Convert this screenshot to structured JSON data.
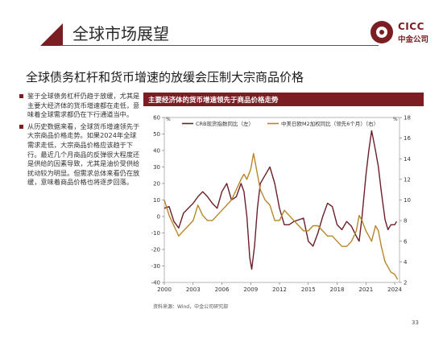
{
  "header": {
    "title": "全球市场展望"
  },
  "logo": {
    "en": "CICC",
    "cn": "中金公司"
  },
  "subtitle": "全球债务杠杆和货币增速的放缓会压制大宗商品价格",
  "bullets": [
    "鉴于全球债务杠杆仍趋于放缓，尤其是主要大经济体的货币增速都在走低，意味着全球需求都仍在下行通道当中。",
    "从历史数据来看，全球货币增速领先于大宗商品价格走势。如果2024年全球需求走低，大宗商品价格应该趋于下行。最近几个月商品的反弹很大程度还是供给的因素导致，尤其是油价受供给扰动较为明显。但需求总体来看仍在放缓，意味着商品价格也将逐步回落。"
  ],
  "chart_title": "主要经济体的货币增速领先于商品价格走势",
  "source": "资料来源：Wind，中金公司研究部",
  "page_number": "33",
  "colors": {
    "brand": "#7a1e23",
    "crb": "#6b1f28",
    "m2": "#b8862a"
  },
  "chart_data": {
    "type": "line",
    "xlim": [
      2000,
      2024.5
    ],
    "x_ticks": [
      "2000",
      "2003",
      "2006",
      "2009",
      "2012",
      "2015",
      "2018",
      "2021",
      "2024"
    ],
    "y_left": {
      "lim": [
        -40,
        60
      ],
      "ticks": [
        "60",
        "50",
        "40",
        "30",
        "20",
        "10",
        "0",
        "-10",
        "-20",
        "-30",
        "-40"
      ],
      "unit_label": "%"
    },
    "y_right": {
      "lim": [
        2,
        18
      ],
      "ticks": [
        "18",
        "16",
        "14",
        "12",
        "10",
        "8",
        "6",
        "4",
        "2"
      ],
      "unit_label": "%"
    },
    "series": [
      {
        "name": "CRB现货指数同比（左）",
        "axis": "left",
        "color": "#6b1f28",
        "x": [
          2000,
          2000.5,
          2001,
          2001.5,
          2002,
          2002.5,
          2003,
          2003.5,
          2004,
          2004.5,
          2005,
          2005.5,
          2006,
          2006.5,
          2007,
          2007.5,
          2008,
          2008.3,
          2008.6,
          2008.9,
          2009.1,
          2009.4,
          2009.7,
          2010,
          2010.5,
          2011,
          2011.5,
          2012,
          2012.5,
          2013,
          2013.5,
          2014,
          2014.5,
          2015,
          2015.5,
          2016,
          2016.5,
          2017,
          2017.5,
          2018,
          2018.5,
          2019,
          2019.5,
          2020,
          2020.3,
          2020.6,
          2021,
          2021.3,
          2021.6,
          2022,
          2022.3,
          2022.6,
          2023,
          2023.3,
          2023.6,
          2024,
          2024.2
        ],
        "y": [
          5,
          6,
          -3,
          -7,
          2,
          5,
          8,
          12,
          15,
          12,
          8,
          5,
          15,
          20,
          10,
          12,
          20,
          15,
          0,
          -25,
          -32,
          -18,
          5,
          20,
          25,
          30,
          20,
          5,
          -5,
          -5,
          -3,
          -2,
          -1,
          -15,
          -18,
          -10,
          0,
          8,
          6,
          -5,
          -8,
          -3,
          -6,
          -12,
          -15,
          0,
          25,
          40,
          52,
          40,
          30,
          15,
          -2,
          -8,
          -5,
          -5,
          -3
        ]
      },
      {
        "name": "中美日欧M2加权同比（领先6个月）（右）",
        "axis": "right",
        "color": "#b8862a",
        "x": [
          2000,
          2000.5,
          2001,
          2001.5,
          2002,
          2002.5,
          2003,
          2003.5,
          2004,
          2004.5,
          2005,
          2005.5,
          2006,
          2006.5,
          2007,
          2007.5,
          2008,
          2008.3,
          2008.6,
          2009,
          2009.3,
          2009.6,
          2010,
          2010.5,
          2011,
          2011.5,
          2012,
          2012.5,
          2013,
          2013.5,
          2014,
          2014.5,
          2015,
          2015.5,
          2016,
          2016.5,
          2017,
          2017.5,
          2018,
          2018.5,
          2019,
          2019.5,
          2020,
          2020.3,
          2020.6,
          2021,
          2021.3,
          2021.6,
          2022,
          2022.3,
          2022.6,
          2023,
          2023.3,
          2023.6,
          2024,
          2024.3
        ],
        "y": [
          10,
          8.5,
          7.5,
          6.5,
          7,
          7.5,
          8,
          9.5,
          8.5,
          8,
          8,
          8.5,
          9,
          9.5,
          10,
          11,
          12,
          12.5,
          12,
          13,
          14.5,
          13,
          11,
          10,
          9.5,
          8,
          8,
          9,
          8.5,
          8,
          7.5,
          7,
          7,
          7.5,
          7.5,
          7,
          6.5,
          6.5,
          6,
          5.5,
          5.5,
          6,
          7,
          8.5,
          8,
          7,
          6.5,
          6,
          7.5,
          7,
          5.5,
          4,
          3.5,
          3,
          2.8,
          2.3
        ]
      }
    ]
  }
}
